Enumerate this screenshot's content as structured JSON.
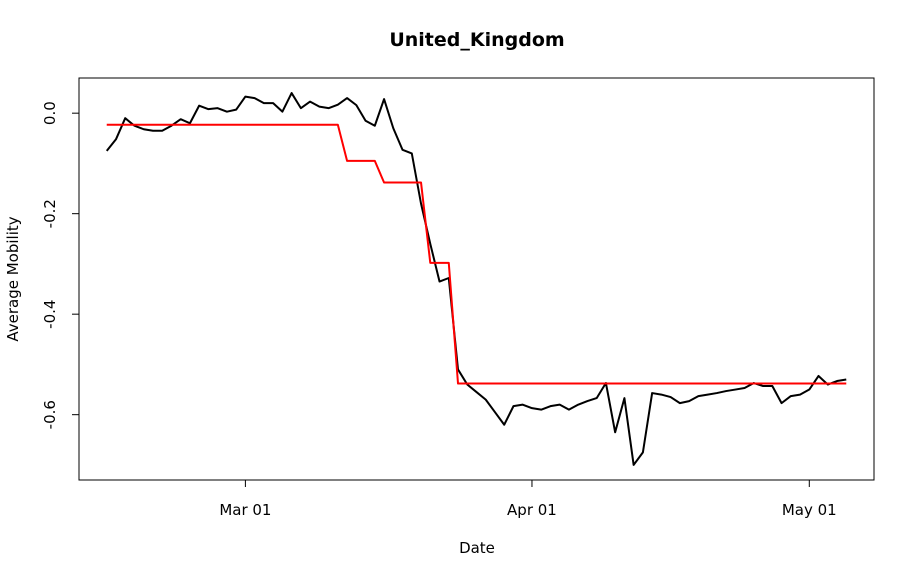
{
  "chart_data": {
    "type": "line",
    "title": "United_Kingdom",
    "xlabel": "Date",
    "ylabel": "Average Mobility",
    "x_ticks": [
      {
        "date": "2020-03-01",
        "label": "Mar 01"
      },
      {
        "date": "2020-04-01",
        "label": "Apr 01"
      },
      {
        "date": "2020-05-01",
        "label": "May 01"
      }
    ],
    "y_ticks": [
      {
        "value": 0.0,
        "label": "0.0"
      },
      {
        "value": -0.2,
        "label": "-0.2"
      },
      {
        "value": -0.4,
        "label": "-0.4"
      },
      {
        "value": -0.6,
        "label": "-0.6"
      }
    ],
    "xlim": [
      "2020-02-12",
      "2020-05-08"
    ],
    "ylim": [
      -0.73,
      0.07
    ],
    "grid": false,
    "series": [
      {
        "color": "#000000",
        "x": [
          "2020-02-15",
          "2020-02-16",
          "2020-02-17",
          "2020-02-18",
          "2020-02-19",
          "2020-02-20",
          "2020-02-21",
          "2020-02-22",
          "2020-02-23",
          "2020-02-24",
          "2020-02-25",
          "2020-02-26",
          "2020-02-27",
          "2020-02-28",
          "2020-02-29",
          "2020-03-01",
          "2020-03-02",
          "2020-03-03",
          "2020-03-04",
          "2020-03-05",
          "2020-03-06",
          "2020-03-07",
          "2020-03-08",
          "2020-03-09",
          "2020-03-10",
          "2020-03-11",
          "2020-03-12",
          "2020-03-13",
          "2020-03-14",
          "2020-03-15",
          "2020-03-16",
          "2020-03-17",
          "2020-03-18",
          "2020-03-19",
          "2020-03-20",
          "2020-03-21",
          "2020-03-22",
          "2020-03-23",
          "2020-03-24",
          "2020-03-25",
          "2020-03-26",
          "2020-03-27",
          "2020-03-28",
          "2020-03-29",
          "2020-03-30",
          "2020-03-31",
          "2020-04-01",
          "2020-04-02",
          "2020-04-03",
          "2020-04-04",
          "2020-04-05",
          "2020-04-06",
          "2020-04-07",
          "2020-04-08",
          "2020-04-09",
          "2020-04-10",
          "2020-04-11",
          "2020-04-12",
          "2020-04-13",
          "2020-04-14",
          "2020-04-15",
          "2020-04-16",
          "2020-04-17",
          "2020-04-18",
          "2020-04-19",
          "2020-04-20",
          "2020-04-21",
          "2020-04-22",
          "2020-04-23",
          "2020-04-24",
          "2020-04-25",
          "2020-04-26",
          "2020-04-27",
          "2020-04-28",
          "2020-04-29",
          "2020-04-30",
          "2020-05-01",
          "2020-05-02",
          "2020-05-03",
          "2020-05-04",
          "2020-05-05"
        ],
        "y": [
          -0.075,
          -0.052,
          -0.01,
          -0.025,
          -0.032,
          -0.035,
          -0.035,
          -0.025,
          -0.012,
          -0.02,
          0.015,
          0.008,
          0.01,
          0.003,
          0.007,
          0.033,
          0.03,
          0.02,
          0.02,
          0.003,
          0.04,
          0.01,
          0.023,
          0.013,
          0.01,
          0.017,
          0.03,
          0.016,
          -0.015,
          -0.025,
          0.028,
          -0.03,
          -0.073,
          -0.08,
          -0.18,
          -0.26,
          -0.335,
          -0.328,
          -0.51,
          -0.54,
          -0.555,
          -0.57,
          -0.595,
          -0.62,
          -0.583,
          -0.58,
          -0.587,
          -0.59,
          -0.583,
          -0.58,
          -0.59,
          -0.58,
          -0.573,
          -0.567,
          -0.537,
          -0.635,
          -0.567,
          -0.7,
          -0.675,
          -0.557,
          -0.56,
          -0.565,
          -0.577,
          -0.573,
          -0.563,
          -0.56,
          -0.557,
          -0.553,
          -0.55,
          -0.547,
          -0.537,
          -0.543,
          -0.543,
          -0.577,
          -0.563,
          -0.56,
          -0.55,
          -0.523,
          -0.54,
          -0.533,
          -0.53
        ]
      },
      {
        "color": "#ff0000",
        "x": [
          "2020-02-15",
          "2020-03-11",
          "2020-03-12",
          "2020-03-15",
          "2020-03-16",
          "2020-03-20",
          "2020-03-21",
          "2020-03-23",
          "2020-03-24",
          "2020-05-05"
        ],
        "y": [
          -0.023,
          -0.023,
          -0.095,
          -0.095,
          -0.138,
          -0.138,
          -0.298,
          -0.298,
          -0.538,
          -0.538
        ]
      }
    ]
  }
}
